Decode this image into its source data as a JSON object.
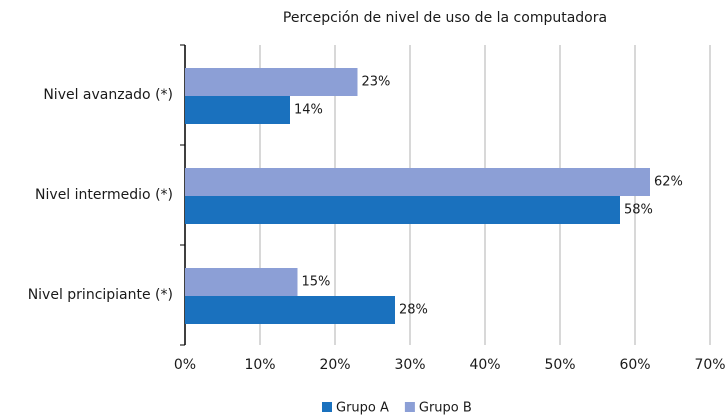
{
  "chart_data": {
    "type": "hbar",
    "title": "Percepción de nivel de uso de la computadora",
    "categories": [
      "Nivel avanzado (*)",
      "Nivel intermedio (*)",
      "Nivel principiante (*)"
    ],
    "series": [
      {
        "name": "Grupo A",
        "color": "#1a71be",
        "values": [
          14,
          58,
          28
        ],
        "value_labels": [
          "14%",
          "58%",
          "28%"
        ]
      },
      {
        "name": "Grupo B",
        "color": "#8c9fd6",
        "values": [
          23,
          62,
          15
        ],
        "value_labels": [
          "23%",
          "62%",
          "15%"
        ]
      }
    ],
    "xlim": [
      0,
      70
    ],
    "xticks": [
      {
        "value": 0,
        "label": "0%"
      },
      {
        "value": 10,
        "label": "10%"
      },
      {
        "value": 20,
        "label": "20%"
      },
      {
        "value": 30,
        "label": "30%"
      },
      {
        "value": 40,
        "label": "40%"
      },
      {
        "value": 50,
        "label": "50%"
      },
      {
        "value": 60,
        "label": "60%"
      },
      {
        "value": 70,
        "label": "70%"
      }
    ],
    "grid": true,
    "legend": "bottom"
  }
}
